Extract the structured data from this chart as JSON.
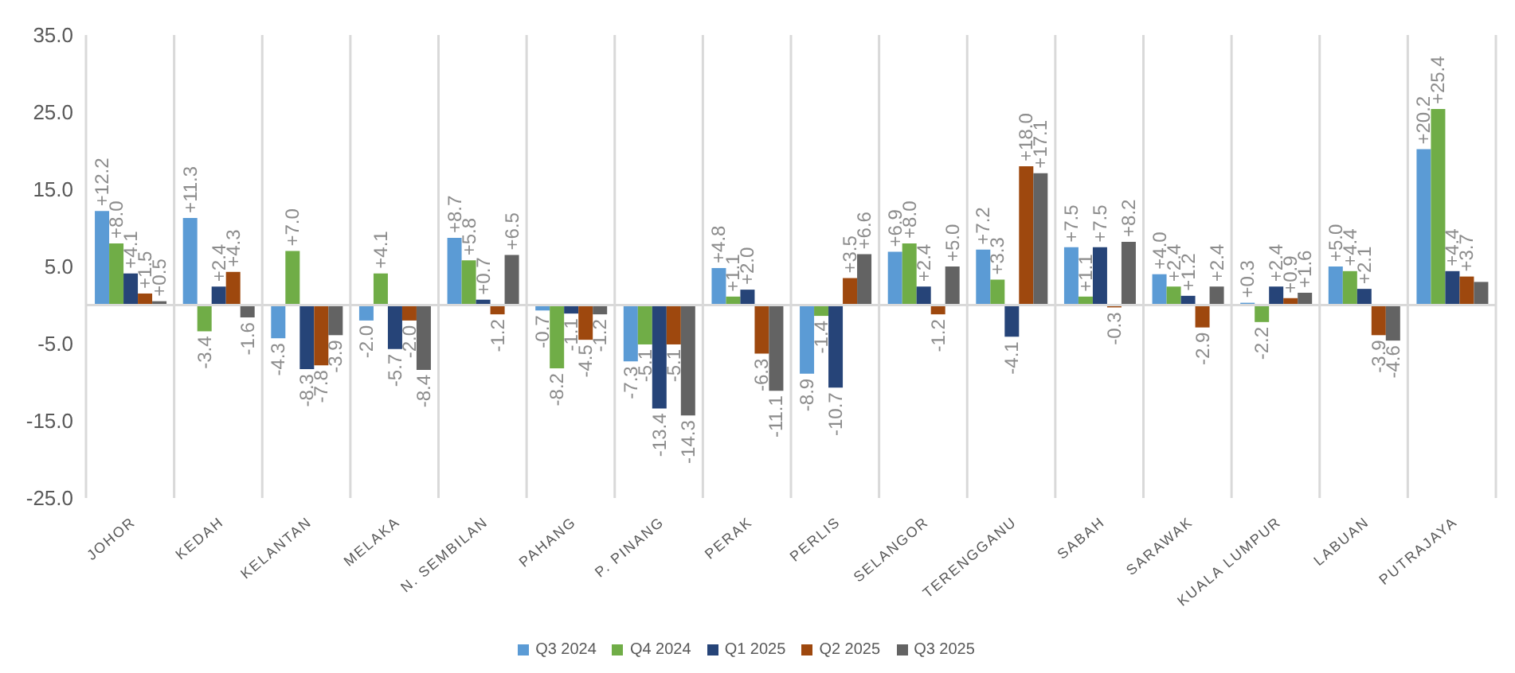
{
  "chart_data": {
    "type": "bar",
    "categories": [
      "JOHOR",
      "KEDAH",
      "KELANTAN",
      "MELAKA",
      "N. SEMBILAN",
      "PAHANG",
      "P. PINANG",
      "PERAK",
      "PERLIS",
      "SELANGOR",
      "TERENGGANU",
      "SABAH",
      "SARAWAK",
      "KUALA LUMPUR",
      "LABUAN",
      "PUTRAJAYA"
    ],
    "series": [
      {
        "name": "Q3 2024",
        "color": "#5b9bd5",
        "values": [
          12.2,
          11.3,
          -4.3,
          -2.0,
          8.7,
          -0.7,
          -7.3,
          4.8,
          -8.9,
          6.9,
          7.2,
          7.5,
          4.0,
          0.3,
          5.0,
          20.2
        ],
        "value_labels": [
          "+12.2",
          "+11.3",
          "-4.3",
          "-2.0",
          "+8.7",
          "-0.7",
          "-7.3",
          "+4.8",
          "-8.9",
          "+6.9",
          "+7.2",
          "+7.5",
          "+4.0",
          "+0.3",
          "+5.0",
          "+20.2"
        ]
      },
      {
        "name": "Q4 2024",
        "color": "#70ad47",
        "values": [
          8.0,
          -3.4,
          7.0,
          4.1,
          5.8,
          -8.2,
          -5.1,
          1.1,
          -1.4,
          8.0,
          3.3,
          1.1,
          2.4,
          -2.2,
          4.4,
          25.4
        ],
        "value_labels": [
          "+8.0",
          "-3.4",
          "+7.0",
          "+4.1",
          "+5.8",
          "-8.2",
          "-5.1",
          "+1.1",
          "-1.4",
          "+8.0",
          "+3.3",
          "+1.1",
          "+2.4",
          "-2.2",
          "+4.4",
          "+25.4"
        ]
      },
      {
        "name": "Q1 2025",
        "color": "#264478",
        "values": [
          4.1,
          2.4,
          -8.3,
          -5.7,
          0.7,
          -1.1,
          -13.4,
          2.0,
          -10.7,
          2.4,
          -4.1,
          7.5,
          1.2,
          2.4,
          2.1,
          4.4
        ],
        "value_labels": [
          "+4.1",
          "+2.4",
          "-8.3",
          "-5.7",
          "+0.7",
          "-1.1",
          "-13.4",
          "+2.0",
          "-10.7",
          "+2.4",
          "-4.1",
          "+7.5",
          "+1.2",
          "+2.4",
          "+2.1",
          "+4.4"
        ]
      },
      {
        "name": "Q2 2025",
        "color": "#9e480e",
        "values": [
          1.5,
          4.3,
          -7.8,
          -2.0,
          -1.2,
          -4.5,
          -5.1,
          -6.3,
          3.5,
          -1.2,
          18.0,
          -0.3,
          -2.9,
          0.9,
          -3.9,
          3.7
        ],
        "value_labels": [
          "+1.5",
          "+4.3",
          "-7.8",
          "-2.0",
          "-1.2",
          "-4.5",
          "-5.1",
          "-6.3",
          "+3.5",
          "-1.2",
          "+18.0",
          "-0.3",
          "-2.9",
          "+0.9",
          "-3.9",
          "+3.7"
        ]
      },
      {
        "name": "Q3 2025",
        "color": "#636363",
        "values": [
          0.5,
          -1.6,
          -3.9,
          -8.4,
          6.5,
          -1.2,
          -14.3,
          -11.1,
          6.6,
          5.0,
          17.1,
          8.2,
          2.4,
          1.6,
          -4.6,
          3.0
        ],
        "value_labels": [
          "+0.5",
          "-1.6",
          "-3.9",
          "-8.4",
          "+6.5",
          "-1.2",
          "-14.3",
          "-11.1",
          "+6.6",
          "+5.0",
          "+17.1",
          "+8.2",
          "+2.4",
          "+1.6",
          "-4.6",
          null
        ]
      }
    ],
    "ylim": [
      -25,
      35
    ],
    "yticks": [
      {
        "value": -25,
        "label": "-25.0"
      },
      {
        "value": -15,
        "label": "-15.0"
      },
      {
        "value": -5,
        "label": "-5.0"
      },
      {
        "value": 5,
        "label": "5.0"
      },
      {
        "value": 15,
        "label": "15.0"
      },
      {
        "value": 25,
        "label": "25.0"
      },
      {
        "value": 35,
        "label": "35.0"
      }
    ],
    "grid": "x",
    "legend": "bottom"
  }
}
